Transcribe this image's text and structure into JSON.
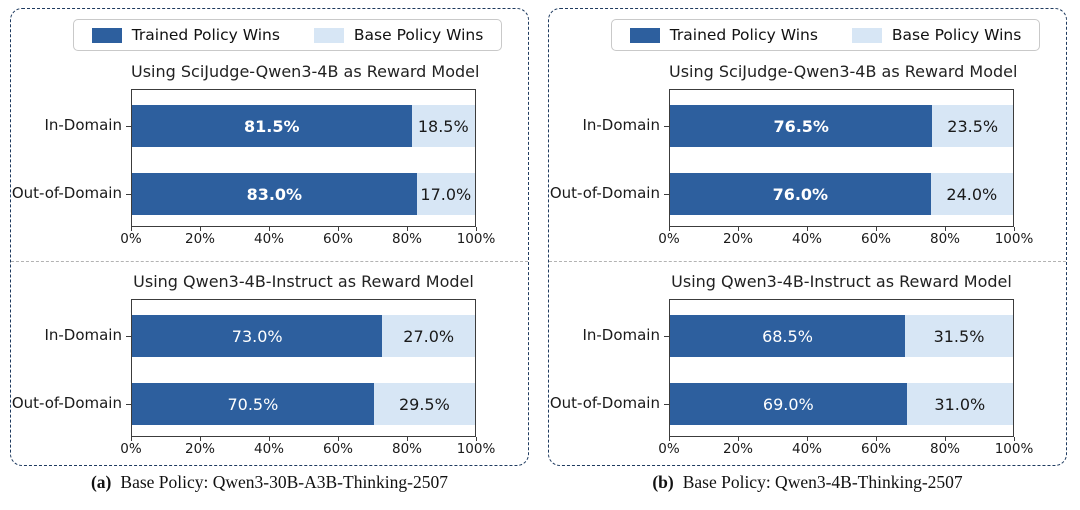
{
  "colors": {
    "trained": "#2d5f9e",
    "base": "#d7e6f5",
    "panel_border": "#1e3a5f",
    "divider": "#b3b3b3",
    "spine": "#3c3c3c",
    "text": "#1a1a1a"
  },
  "legend": {
    "trained_label": "Trained Policy Wins",
    "base_label": "Base Policy Wins"
  },
  "panels": [
    {
      "caption_tag": "(a)",
      "caption_text": "Base Policy: Qwen3-30B-A3B-Thinking-2507",
      "charts": [
        {
          "title": "Using SciJudge-Qwen3-4B as Reward Model",
          "x_ticks": [
            "0%",
            "20%",
            "40%",
            "60%",
            "80%",
            "100%"
          ],
          "bars": [
            {
              "category": "In-Domain",
              "trained_pct": 81.5,
              "base_pct": 18.5,
              "trained_label": "81.5%",
              "base_label": "18.5%"
            },
            {
              "category": "Out-of-Domain",
              "trained_pct": 83.0,
              "base_pct": 17.0,
              "trained_label": "83.0%",
              "base_label": "17.0%"
            }
          ]
        },
        {
          "title": "Using Qwen3-4B-Instruct as Reward Model",
          "x_ticks": [
            "0%",
            "20%",
            "40%",
            "60%",
            "80%",
            "100%"
          ],
          "bars": [
            {
              "category": "In-Domain",
              "trained_pct": 73.0,
              "base_pct": 27.0,
              "trained_label": "73.0%",
              "base_label": "27.0%"
            },
            {
              "category": "Out-of-Domain",
              "trained_pct": 70.5,
              "base_pct": 29.5,
              "trained_label": "70.5%",
              "base_label": "29.5%"
            }
          ]
        }
      ]
    },
    {
      "caption_tag": "(b)",
      "caption_text": "Base Policy: Qwen3-4B-Thinking-2507",
      "charts": [
        {
          "title": "Using SciJudge-Qwen3-4B as Reward Model",
          "x_ticks": [
            "0%",
            "20%",
            "40%",
            "60%",
            "80%",
            "100%"
          ],
          "bars": [
            {
              "category": "In-Domain",
              "trained_pct": 76.5,
              "base_pct": 23.5,
              "trained_label": "76.5%",
              "base_label": "23.5%"
            },
            {
              "category": "Out-of-Domain",
              "trained_pct": 76.0,
              "base_pct": 24.0,
              "trained_label": "76.0%",
              "base_label": "24.0%"
            }
          ]
        },
        {
          "title": "Using Qwen3-4B-Instruct as Reward Model",
          "x_ticks": [
            "0%",
            "20%",
            "40%",
            "60%",
            "80%",
            "100%"
          ],
          "bars": [
            {
              "category": "In-Domain",
              "trained_pct": 68.5,
              "base_pct": 31.5,
              "trained_label": "68.5%",
              "base_label": "31.5%"
            },
            {
              "category": "Out-of-Domain",
              "trained_pct": 69.0,
              "base_pct": 31.0,
              "trained_label": "69.0%",
              "base_label": "31.0%"
            }
          ]
        }
      ]
    }
  ],
  "chart_data": [
    {
      "type": "bar",
      "orientation": "horizontal",
      "stacked": true,
      "panel": "(a) Base Policy: Qwen3-30B-A3B-Thinking-2507",
      "title": "Using SciJudge-Qwen3-4B as Reward Model",
      "categories": [
        "In-Domain",
        "Out-of-Domain"
      ],
      "series": [
        {
          "name": "Trained Policy Wins",
          "values": [
            81.5,
            83.0
          ]
        },
        {
          "name": "Base Policy Wins",
          "values": [
            18.5,
            17.0
          ]
        }
      ],
      "xlim": [
        0,
        100
      ],
      "x_tick_labels": [
        "0%",
        "20%",
        "40%",
        "60%",
        "80%",
        "100%"
      ],
      "legend_position": "top",
      "grid": false
    },
    {
      "type": "bar",
      "orientation": "horizontal",
      "stacked": true,
      "panel": "(a) Base Policy: Qwen3-30B-A3B-Thinking-2507",
      "title": "Using Qwen3-4B-Instruct as Reward Model",
      "categories": [
        "In-Domain",
        "Out-of-Domain"
      ],
      "series": [
        {
          "name": "Trained Policy Wins",
          "values": [
            73.0,
            70.5
          ]
        },
        {
          "name": "Base Policy Wins",
          "values": [
            27.0,
            29.5
          ]
        }
      ],
      "xlim": [
        0,
        100
      ],
      "x_tick_labels": [
        "0%",
        "20%",
        "40%",
        "60%",
        "80%",
        "100%"
      ],
      "legend_position": "top",
      "grid": false
    },
    {
      "type": "bar",
      "orientation": "horizontal",
      "stacked": true,
      "panel": "(b) Base Policy: Qwen3-4B-Thinking-2507",
      "title": "Using SciJudge-Qwen3-4B as Reward Model",
      "categories": [
        "In-Domain",
        "Out-of-Domain"
      ],
      "series": [
        {
          "name": "Trained Policy Wins",
          "values": [
            76.5,
            76.0
          ]
        },
        {
          "name": "Base Policy Wins",
          "values": [
            23.5,
            24.0
          ]
        }
      ],
      "xlim": [
        0,
        100
      ],
      "x_tick_labels": [
        "0%",
        "20%",
        "40%",
        "60%",
        "80%",
        "100%"
      ],
      "legend_position": "top",
      "grid": false
    },
    {
      "type": "bar",
      "orientation": "horizontal",
      "stacked": true,
      "panel": "(b) Base Policy: Qwen3-4B-Thinking-2507",
      "title": "Using Qwen3-4B-Instruct as Reward Model",
      "categories": [
        "In-Domain",
        "Out-of-Domain"
      ],
      "series": [
        {
          "name": "Trained Policy Wins",
          "values": [
            68.5,
            69.0
          ]
        },
        {
          "name": "Base Policy Wins",
          "values": [
            31.5,
            31.0
          ]
        }
      ],
      "xlim": [
        0,
        100
      ],
      "x_tick_labels": [
        "0%",
        "20%",
        "40%",
        "60%",
        "80%",
        "100%"
      ],
      "legend_position": "top",
      "grid": false
    }
  ]
}
